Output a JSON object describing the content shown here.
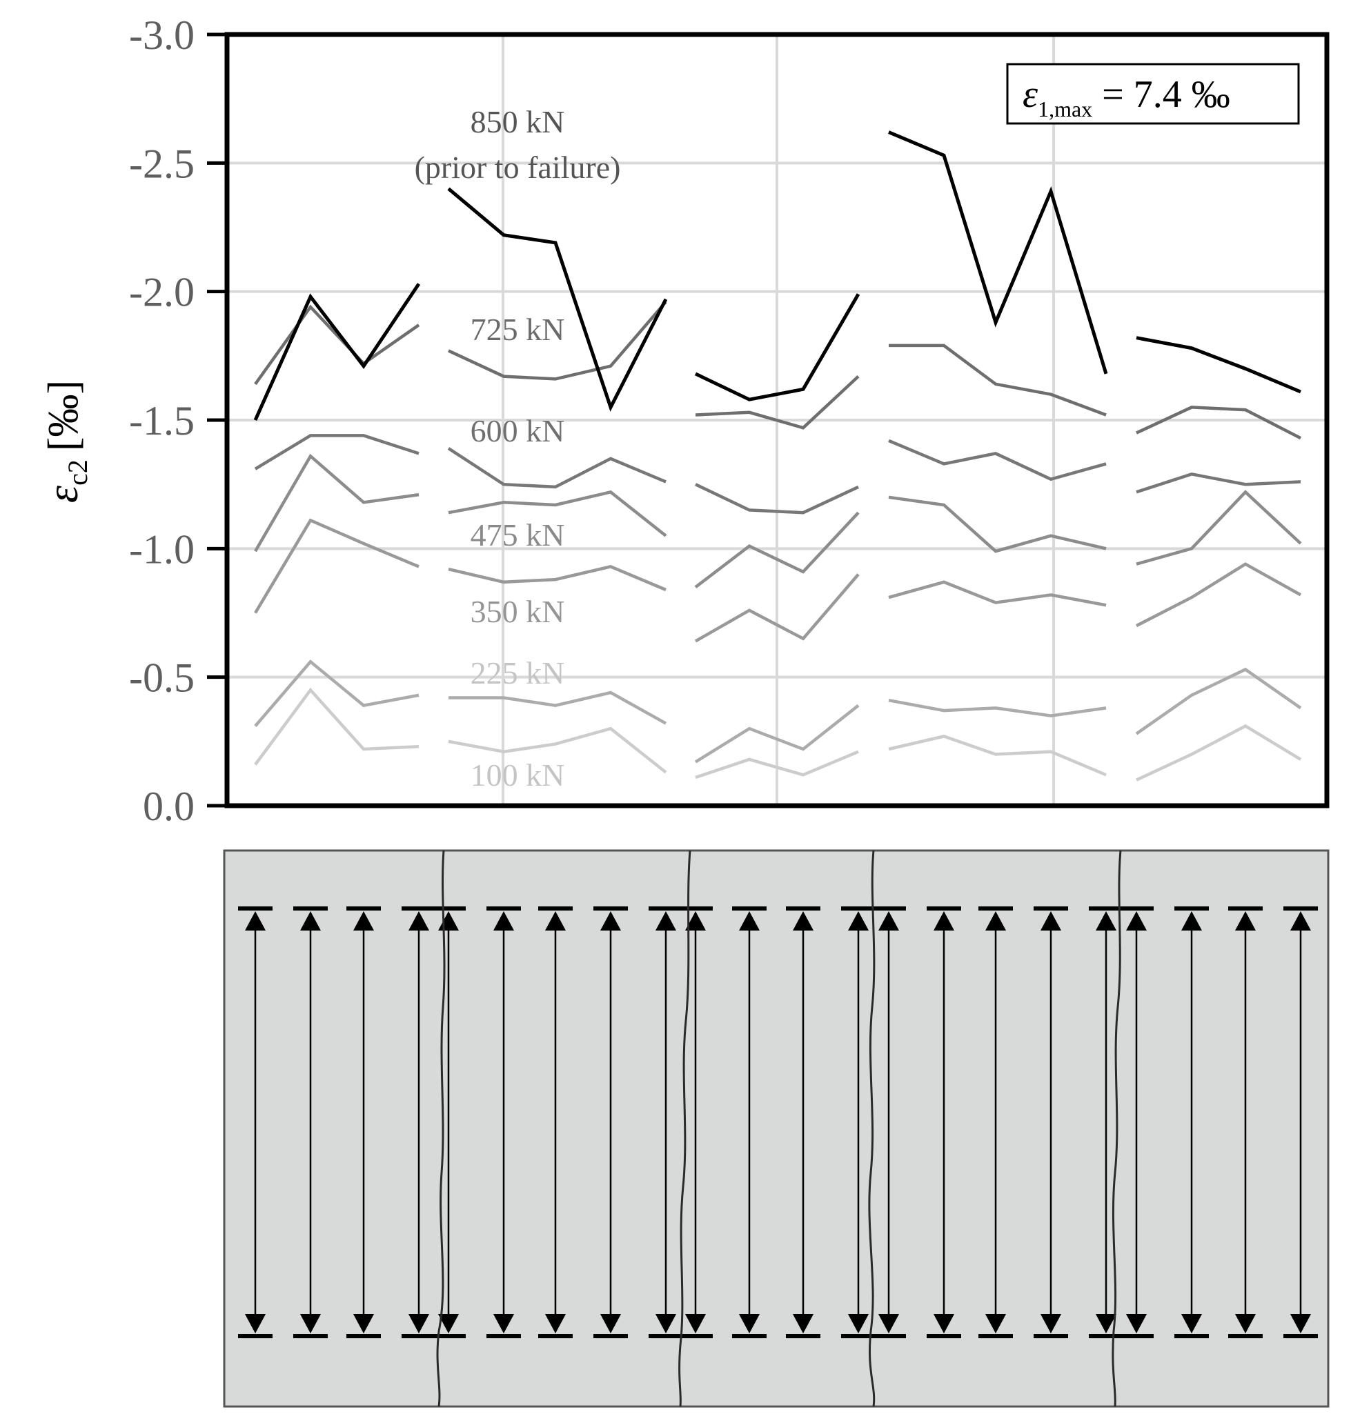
{
  "chart_data": {
    "type": "line",
    "ylabel": {
      "symbol": "ε",
      "subscript": "c2",
      "unit": "[‰]"
    },
    "ylim": [
      0,
      -3.0
    ],
    "y_inverted": true,
    "yticks": [
      "-3.0",
      "-2.5",
      "-2.0",
      "-1.5",
      "-1.0",
      "-0.5",
      "0.0"
    ],
    "ytick_values": [
      -3.0,
      -2.5,
      -2.0,
      -1.5,
      -1.0,
      -0.5,
      0.0
    ],
    "grid": true,
    "annotation": {
      "symbol": "ε",
      "subscript": "1,max",
      "value_text": " = 7.4 ‰"
    },
    "x_description": "gauge positions 1-22 along the specimen, grouped into 5 segments separated by cracks",
    "segments": [
      [
        1,
        2,
        3,
        4
      ],
      [
        5,
        6,
        7,
        8,
        9
      ],
      [
        10,
        11,
        12,
        13
      ],
      [
        14,
        15,
        16,
        17,
        18
      ],
      [
        19,
        20,
        21,
        22
      ]
    ],
    "load_labels": [
      {
        "text": "850 kN",
        "text2": "(prior to failure)",
        "color": "#555555"
      },
      {
        "text": "725 kN",
        "color": "#6a6a6a"
      },
      {
        "text": "600 kN",
        "color": "#707070"
      },
      {
        "text": "475 kN",
        "color": "#8a8a8a"
      },
      {
        "text": "350 kN",
        "color": "#959595"
      },
      {
        "text": "225 kN",
        "color": "#c4c4c4"
      },
      {
        "text": "100 kN",
        "color": "#c4c4c4"
      }
    ],
    "series": [
      {
        "load": "850 kN",
        "color": "#000000",
        "values": [
          -1.5,
          -1.98,
          -1.71,
          -2.03,
          -2.4,
          -2.22,
          -2.19,
          -1.55,
          -1.97,
          -1.68,
          -1.58,
          -1.62,
          -1.99,
          -2.62,
          -2.53,
          -1.88,
          -2.39,
          -1.68,
          -1.82,
          -1.78,
          -1.7,
          -1.61
        ]
      },
      {
        "load": "725 kN",
        "color": "#6e6e6e",
        "values": [
          -1.64,
          -1.94,
          -1.72,
          -1.87,
          -1.77,
          -1.67,
          -1.66,
          -1.71,
          -1.96,
          -1.52,
          -1.53,
          -1.47,
          -1.67,
          -1.79,
          -1.79,
          -1.64,
          -1.6,
          -1.52,
          -1.45,
          -1.55,
          -1.54,
          -1.43
        ]
      },
      {
        "load": "600 kN",
        "color": "#777777",
        "values": [
          -1.31,
          -1.44,
          -1.44,
          -1.37,
          -1.39,
          -1.25,
          -1.24,
          -1.35,
          -1.26,
          -1.25,
          -1.15,
          -1.14,
          -1.24,
          -1.42,
          -1.33,
          -1.37,
          -1.27,
          -1.33,
          -1.22,
          -1.29,
          -1.25,
          -1.26
        ]
      },
      {
        "load": "475 kN",
        "color": "#8c8c8c",
        "values": [
          -0.99,
          -1.36,
          -1.18,
          -1.21,
          -1.14,
          -1.18,
          -1.17,
          -1.22,
          -1.05,
          -0.85,
          -1.01,
          -0.91,
          -1.14,
          -1.2,
          -1.17,
          -0.99,
          -1.05,
          -1.0,
          -0.94,
          -1.0,
          -1.22,
          -1.02
        ]
      },
      {
        "load": "350 kN",
        "color": "#999999",
        "values": [
          -0.75,
          -1.11,
          -1.02,
          -0.93,
          -0.92,
          -0.87,
          -0.88,
          -0.93,
          -0.84,
          -0.64,
          -0.76,
          -0.65,
          -0.9,
          -0.81,
          -0.87,
          -0.79,
          -0.82,
          -0.78,
          -0.7,
          -0.81,
          -0.94,
          -0.82
        ]
      },
      {
        "load": "225 kN",
        "color": "#ababab",
        "values": [
          -0.31,
          -0.56,
          -0.39,
          -0.43,
          -0.42,
          -0.42,
          -0.39,
          -0.44,
          -0.32,
          -0.17,
          -0.3,
          -0.22,
          -0.39,
          -0.41,
          -0.37,
          -0.38,
          -0.35,
          -0.38,
          -0.28,
          -0.43,
          -0.53,
          -0.38
        ]
      },
      {
        "load": "100 kN",
        "color": "#cccccc",
        "values": [
          -0.16,
          -0.45,
          -0.22,
          -0.23,
          -0.25,
          -0.21,
          -0.24,
          -0.3,
          -0.13,
          -0.11,
          -0.18,
          -0.12,
          -0.21,
          -0.22,
          -0.27,
          -0.2,
          -0.21,
          -0.12,
          -0.1,
          -0.2,
          -0.31,
          -0.18
        ]
      }
    ]
  },
  "specimen": {
    "fill": "#d8d9d9",
    "gauge_count": 22
  }
}
